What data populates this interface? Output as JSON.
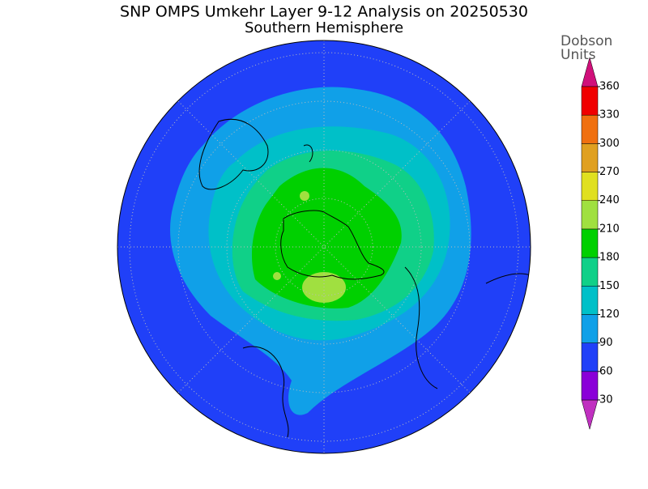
{
  "title": "SNP OMPS Umkehr Layer 9-12 Analysis on 20250530",
  "subtitle": "Southern Hemisphere",
  "colorbar": {
    "title_lines": [
      "Dobson",
      "Units"
    ],
    "ticks": [
      30,
      60,
      90,
      120,
      150,
      180,
      210,
      240,
      270,
      300,
      330,
      360
    ],
    "colors": [
      "#c030c0",
      "#8a00d8",
      "#2040f8",
      "#10a0e8",
      "#00c0c8",
      "#10d088",
      "#00d000",
      "#a0e040",
      "#e0e020",
      "#e0a020",
      "#f07010",
      "#f00000",
      "#d0107a"
    ]
  }
}
